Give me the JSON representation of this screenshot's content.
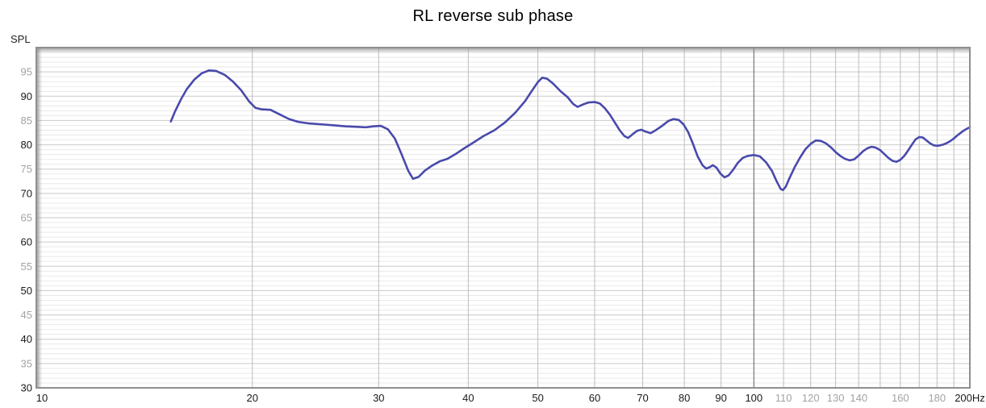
{
  "chart_data": {
    "type": "line",
    "title": "RL reverse sub phase",
    "ylabel": "SPL",
    "x_scale": "log",
    "xlim": [
      10,
      200
    ],
    "ylim": [
      30,
      100
    ],
    "y_minor_step": 1,
    "y_major_step": 5,
    "yticks_black": [
      30,
      40,
      50,
      60,
      70,
      80,
      90
    ],
    "yticks_gray": [
      35,
      45,
      55,
      65,
      75,
      85,
      95
    ],
    "xticks_black": [
      10,
      20,
      30,
      40,
      50,
      60,
      70,
      80,
      90,
      100
    ],
    "xticks_gray": [
      110,
      120,
      130,
      140,
      160,
      180
    ],
    "x_end_tick": 200,
    "x_end_label": "200Hz",
    "x_gridlines": [
      20,
      30,
      40,
      50,
      60,
      70,
      80,
      90,
      100,
      110,
      120,
      130,
      140,
      150,
      160,
      170,
      180,
      190
    ],
    "x_dark_gridline": 100,
    "grid": true,
    "legend_position": "none",
    "colors": {
      "curve": "#4949ac",
      "grid_minor": "#e9e9e9",
      "grid_major": "#c9c9c9",
      "grid_vertical": "#bdbdbd",
      "grid_dark": "#5a5a5a",
      "border": "#8f8f8f",
      "tick_black": "#1a1a1a",
      "tick_gray": "#a3a3a3"
    },
    "series": [
      {
        "name": "RL reverse sub phase",
        "points": [
          [
            15.4,
            84.8
          ],
          [
            15.6,
            86.8
          ],
          [
            15.9,
            89.3
          ],
          [
            16.2,
            91.4
          ],
          [
            16.6,
            93.4
          ],
          [
            17.0,
            94.7
          ],
          [
            17.4,
            95.3
          ],
          [
            17.8,
            95.2
          ],
          [
            18.3,
            94.4
          ],
          [
            18.8,
            93.0
          ],
          [
            19.3,
            91.2
          ],
          [
            19.8,
            88.9
          ],
          [
            20.2,
            87.6
          ],
          [
            20.6,
            87.3
          ],
          [
            21.2,
            87.2
          ],
          [
            21.8,
            86.3
          ],
          [
            22.5,
            85.3
          ],
          [
            23.2,
            84.7
          ],
          [
            24,
            84.4
          ],
          [
            25,
            84.2
          ],
          [
            26,
            84.0
          ],
          [
            27,
            83.8
          ],
          [
            28,
            83.7
          ],
          [
            28.8,
            83.6
          ],
          [
            29.5,
            83.8
          ],
          [
            30.2,
            83.9
          ],
          [
            30.9,
            83.2
          ],
          [
            31.6,
            81.3
          ],
          [
            32.3,
            78.0
          ],
          [
            33.0,
            74.6
          ],
          [
            33.5,
            73.0
          ],
          [
            34.1,
            73.4
          ],
          [
            34.8,
            74.7
          ],
          [
            35.6,
            75.7
          ],
          [
            36.5,
            76.6
          ],
          [
            37.4,
            77.1
          ],
          [
            38.4,
            78.1
          ],
          [
            39.4,
            79.2
          ],
          [
            40.5,
            80.3
          ],
          [
            42,
            81.8
          ],
          [
            43.5,
            83.0
          ],
          [
            45,
            84.6
          ],
          [
            46.5,
            86.6
          ],
          [
            48,
            89.0
          ],
          [
            49,
            91.0
          ],
          [
            50,
            92.9
          ],
          [
            50.7,
            93.8
          ],
          [
            51.5,
            93.6
          ],
          [
            52.5,
            92.6
          ],
          [
            53.8,
            91.0
          ],
          [
            55,
            89.8
          ],
          [
            56,
            88.4
          ],
          [
            56.8,
            87.8
          ],
          [
            57.8,
            88.3
          ],
          [
            58.8,
            88.7
          ],
          [
            60,
            88.8
          ],
          [
            61,
            88.5
          ],
          [
            62,
            87.5
          ],
          [
            63,
            86.2
          ],
          [
            64,
            84.6
          ],
          [
            65,
            83.0
          ],
          [
            66,
            81.8
          ],
          [
            66.8,
            81.4
          ],
          [
            67.8,
            82.2
          ],
          [
            68.8,
            82.9
          ],
          [
            69.7,
            83.1
          ],
          [
            70.7,
            82.7
          ],
          [
            71.8,
            82.4
          ],
          [
            73,
            83.0
          ],
          [
            74.5,
            83.9
          ],
          [
            76,
            84.9
          ],
          [
            77.3,
            85.3
          ],
          [
            78.6,
            85.1
          ],
          [
            79.8,
            84.2
          ],
          [
            81,
            82.6
          ],
          [
            82.2,
            80.3
          ],
          [
            83.5,
            77.6
          ],
          [
            84.8,
            75.8
          ],
          [
            85.8,
            75.1
          ],
          [
            86.8,
            75.4
          ],
          [
            87.7,
            75.8
          ],
          [
            88.7,
            75.3
          ],
          [
            89.8,
            74.1
          ],
          [
            91,
            73.3
          ],
          [
            92.2,
            73.7
          ],
          [
            93.5,
            74.8
          ],
          [
            95,
            76.3
          ],
          [
            96.5,
            77.3
          ],
          [
            98,
            77.7
          ],
          [
            100,
            77.9
          ],
          [
            102,
            77.6
          ],
          [
            104,
            76.4
          ],
          [
            106,
            74.6
          ],
          [
            107.5,
            72.6
          ],
          [
            109,
            70.9
          ],
          [
            109.8,
            70.7
          ],
          [
            110.8,
            71.4
          ],
          [
            112,
            73.0
          ],
          [
            114,
            75.4
          ],
          [
            116,
            77.4
          ],
          [
            118,
            79.1
          ],
          [
            120,
            80.2
          ],
          [
            122,
            80.9
          ],
          [
            124,
            80.8
          ],
          [
            126,
            80.3
          ],
          [
            128,
            79.5
          ],
          [
            130,
            78.5
          ],
          [
            132,
            77.7
          ],
          [
            134,
            77.1
          ],
          [
            136,
            76.8
          ],
          [
            138,
            77.0
          ],
          [
            140,
            77.8
          ],
          [
            142,
            78.7
          ],
          [
            144,
            79.3
          ],
          [
            146,
            79.6
          ],
          [
            148,
            79.4
          ],
          [
            150,
            78.9
          ],
          [
            152,
            78.1
          ],
          [
            154,
            77.3
          ],
          [
            156,
            76.7
          ],
          [
            158,
            76.5
          ],
          [
            160,
            76.9
          ],
          [
            162,
            77.7
          ],
          [
            164,
            78.8
          ],
          [
            166,
            80.0
          ],
          [
            168,
            81.1
          ],
          [
            170,
            81.6
          ],
          [
            172,
            81.5
          ],
          [
            174,
            80.9
          ],
          [
            176,
            80.3
          ],
          [
            178,
            79.9
          ],
          [
            180,
            79.8
          ],
          [
            182,
            79.9
          ],
          [
            184,
            80.1
          ],
          [
            186,
            80.4
          ],
          [
            188,
            80.8
          ],
          [
            190,
            81.3
          ],
          [
            192,
            81.9
          ],
          [
            194,
            82.4
          ],
          [
            196,
            82.9
          ],
          [
            198,
            83.3
          ],
          [
            200,
            83.6
          ]
        ]
      }
    ]
  }
}
